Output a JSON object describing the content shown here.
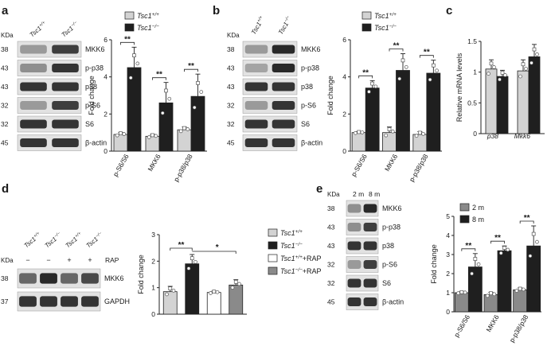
{
  "colors": {
    "light_bar": "#d3d3d3",
    "dark_bar": "#1f1f1f",
    "mid_gray": "#8a8a8a",
    "white_bar": "#ffffff",
    "text": "#1a1a1a",
    "blot_bg": "#e2e2e2",
    "blot_band": "#151515"
  },
  "panels": {
    "a": {
      "letter": "a"
    },
    "b": {
      "letter": "b"
    },
    "c": {
      "letter": "c"
    },
    "d": {
      "letter": "d"
    },
    "e": {
      "letter": "e"
    }
  },
  "blots": {
    "a": {
      "kda_label": "KDa",
      "lanes": [
        "Tsc1+/+",
        "Tsc1−/−"
      ],
      "rows": [
        {
          "kda": "38",
          "label": "MKK6",
          "bands": [
            0.35,
            0.8
          ]
        },
        {
          "kda": "43",
          "label": "p-p38",
          "bands": [
            0.4,
            0.85
          ]
        },
        {
          "kda": "43",
          "label": "p38",
          "bands": [
            0.85,
            0.85
          ]
        },
        {
          "kda": "32",
          "label": "p-S6",
          "bands": [
            0.35,
            0.8
          ]
        },
        {
          "kda": "32",
          "label": "S6",
          "bands": [
            0.85,
            0.85
          ]
        },
        {
          "kda": "45",
          "label": "β-actin",
          "bands": [
            0.85,
            0.85
          ]
        }
      ]
    },
    "b": {
      "kda_label": "KDa",
      "lanes": [
        "Tsc1+/+",
        "Tsc1−/−"
      ],
      "rows": [
        {
          "kda": "38",
          "label": "MKK6",
          "bands": [
            0.35,
            0.9
          ]
        },
        {
          "kda": "43",
          "label": "p-p38",
          "bands": [
            0.3,
            0.9
          ]
        },
        {
          "kda": "43",
          "label": "p38",
          "bands": [
            0.85,
            0.85
          ]
        },
        {
          "kda": "32",
          "label": "p-S6",
          "bands": [
            0.35,
            0.85
          ]
        },
        {
          "kda": "32",
          "label": "S6",
          "bands": [
            0.85,
            0.85
          ]
        },
        {
          "kda": "45",
          "label": "β-actin",
          "bands": [
            0.85,
            0.85
          ]
        }
      ]
    },
    "d": {
      "kda_label": "KDa",
      "lanes": [
        "Tsc1+/+",
        "Tsc1−/−",
        "Tsc1+/+",
        "Tsc1−/−"
      ],
      "rap_label": "RAP",
      "rap_signs": [
        "−",
        "−",
        "+",
        "+"
      ],
      "rows": [
        {
          "kda": "38",
          "label": "MKK6",
          "bands": [
            0.6,
            0.9,
            0.6,
            0.75
          ]
        },
        {
          "kda": "37",
          "label": "GAPDH",
          "bands": [
            0.85,
            0.85,
            0.85,
            0.85
          ]
        }
      ]
    },
    "e": {
      "kda_label": "KDa",
      "lanes": [
        "2 m",
        "8 m"
      ],
      "rows": [
        {
          "kda": "38",
          "label": "MKK6",
          "bands": [
            0.4,
            0.9
          ]
        },
        {
          "kda": "43",
          "label": "p-p38",
          "bands": [
            0.4,
            0.8
          ]
        },
        {
          "kda": "43",
          "label": "p38",
          "bands": [
            0.85,
            0.85
          ]
        },
        {
          "kda": "32",
          "label": "p-S6",
          "bands": [
            0.35,
            0.8
          ]
        },
        {
          "kda": "32",
          "label": "S6",
          "bands": [
            0.85,
            0.85
          ]
        },
        {
          "kda": "45",
          "label": "β-actin",
          "bands": [
            0.85,
            0.85
          ]
        }
      ]
    }
  },
  "chart_data": [
    {
      "panel": "a",
      "type": "bar",
      "ylabel": "Fold change",
      "ylim": [
        0,
        6
      ],
      "yticks": [
        0,
        2,
        4,
        6
      ],
      "categories": [
        "p-S6/S6",
        "MKK6",
        "p-p38/p38"
      ],
      "legend": [
        "Tsc1+/+",
        "Tsc1−/−"
      ],
      "series": [
        {
          "name": "Tsc1+/+",
          "values": [
            0.9,
            0.8,
            1.15
          ],
          "errors": [
            0.1,
            0.1,
            0.15
          ]
        },
        {
          "name": "Tsc1−/−",
          "values": [
            4.5,
            2.6,
            2.95
          ],
          "errors": [
            1.1,
            1.1,
            1.2
          ]
        }
      ],
      "significance": [
        "**",
        "**",
        "**"
      ]
    },
    {
      "panel": "b",
      "type": "bar",
      "ylabel": "Fold change",
      "ylim": [
        0,
        6
      ],
      "yticks": [
        0,
        2,
        4,
        6
      ],
      "categories": [
        "p-S6/S6",
        "MKK6",
        "p-p38/p38"
      ],
      "legend": [
        "Tsc1+/+",
        "Tsc1−/−"
      ],
      "series": [
        {
          "name": "Tsc1+/+",
          "values": [
            1.0,
            1.0,
            0.9
          ],
          "errors": [
            0.05,
            0.3,
            0.15
          ]
        },
        {
          "name": "Tsc1−/−",
          "values": [
            3.4,
            4.35,
            4.2
          ],
          "errors": [
            0.4,
            0.9,
            0.7
          ]
        }
      ],
      "significance": [
        "**",
        "**",
        "**"
      ]
    },
    {
      "panel": "c",
      "type": "bar",
      "ylabel": "Relative mRNA levels",
      "ylim": [
        0,
        1.5
      ],
      "yticks": [
        0,
        0.5,
        1.0,
        1.5
      ],
      "categories": [
        "p38",
        "Mkk6"
      ],
      "series": [
        {
          "name": "",
          "values": [
            1.05,
            1.02
          ],
          "errors": [
            0.15,
            0.18
          ]
        },
        {
          "name": "",
          "values": [
            0.93,
            1.25
          ],
          "errors": [
            0.1,
            0.2
          ]
        }
      ]
    },
    {
      "panel": "d",
      "type": "bar",
      "ylabel": "Fold change",
      "ylim": [
        0,
        3
      ],
      "yticks": [
        0,
        1,
        2,
        3
      ],
      "categories": [
        "Tsc1+/+",
        "Tsc1−/−",
        "Tsc1+/++RAP",
        "Tsc1−/−+RAP"
      ],
      "legend": [
        "Tsc1+/+",
        "Tsc1−/−",
        "Tsc1+/++RAP",
        "Tsc1−/−+RAP"
      ],
      "series": [
        {
          "name": "Tsc1+/+",
          "values": [
            0.85,
            1.9,
            0.82,
            1.1
          ],
          "errors": [
            0.2,
            0.35,
            0.05,
            0.2
          ]
        }
      ],
      "significance": [
        "**",
        "*"
      ]
    },
    {
      "panel": "e",
      "type": "bar",
      "ylabel": "Fold change",
      "ylim": [
        0,
        5
      ],
      "yticks": [
        0,
        1,
        2,
        3,
        4,
        5
      ],
      "categories": [
        "p-S6/S6",
        "MKK6",
        "p-p38/p38"
      ],
      "legend": [
        "2 m",
        "8 m"
      ],
      "series": [
        {
          "name": "2 m",
          "values": [
            1.0,
            0.9,
            1.15
          ],
          "errors": [
            0.05,
            0.12,
            0.1
          ]
        },
        {
          "name": "8 m",
          "values": [
            2.35,
            3.2,
            3.45
          ],
          "errors": [
            0.7,
            0.25,
            1.05
          ]
        }
      ],
      "significance": [
        "**",
        "**",
        "**"
      ]
    }
  ]
}
